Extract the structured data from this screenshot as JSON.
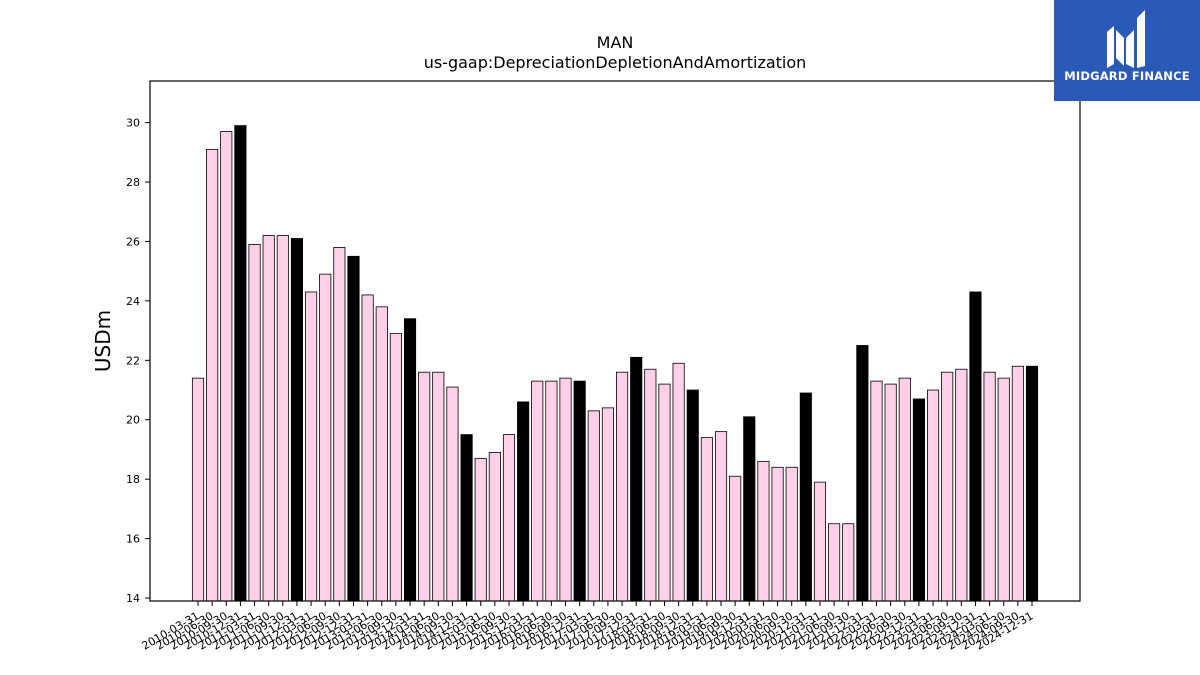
{
  "chart_data": {
    "type": "bar",
    "title": "MAN",
    "subtitle": "us-gaap:DepreciationDepletionAndAmortization",
    "xlabel": "",
    "ylabel": "USDm",
    "ylim": [
      13.9,
      31.4
    ],
    "yticks": [
      14,
      16,
      18,
      20,
      22,
      24,
      26,
      28,
      30
    ],
    "grid": false,
    "colors": {
      "quarter": "#ffd0e8",
      "year_end": "#000000",
      "edge": "#000000"
    },
    "categories": [
      "2010-03-31",
      "2010-06-30",
      "2010-09-30",
      "2010-12-31",
      "2011-03-31",
      "2011-06-30",
      "2011-09-30",
      "2011-12-31",
      "2012-03-31",
      "2012-06-30",
      "2012-09-30",
      "2012-12-31",
      "2013-03-31",
      "2013-06-30",
      "2013-09-30",
      "2013-12-31",
      "2014-03-31",
      "2014-06-30",
      "2014-09-30",
      "2014-12-31",
      "2015-03-31",
      "2015-06-30",
      "2015-09-30",
      "2015-12-31",
      "2016-03-31",
      "2016-06-30",
      "2016-09-30",
      "2016-12-31",
      "2017-03-31",
      "2017-06-30",
      "2017-09-30",
      "2017-12-31",
      "2018-03-31",
      "2018-06-30",
      "2018-09-30",
      "2018-12-31",
      "2019-03-31",
      "2019-06-30",
      "2019-09-30",
      "2019-12-31",
      "2020-03-31",
      "2020-06-30",
      "2020-09-30",
      "2020-12-31",
      "2021-03-31",
      "2021-06-30",
      "2021-09-30",
      "2021-12-31",
      "2022-03-31",
      "2022-06-30",
      "2022-09-30",
      "2022-12-31",
      "2023-03-31",
      "2023-06-30",
      "2023-09-30",
      "2023-12-31",
      "2024-03-31",
      "2024-06-30",
      "2024-09-30",
      "2024-12-31"
    ],
    "values": [
      21.4,
      29.1,
      29.7,
      29.9,
      25.9,
      26.2,
      26.2,
      26.1,
      24.3,
      24.9,
      25.8,
      25.5,
      24.2,
      23.8,
      22.9,
      23.4,
      21.6,
      21.6,
      21.1,
      19.5,
      18.7,
      18.9,
      19.5,
      20.6,
      21.3,
      21.3,
      21.4,
      21.3,
      20.3,
      20.4,
      21.6,
      22.1,
      21.7,
      21.2,
      21.9,
      21.0,
      19.4,
      19.6,
      18.1,
      20.1,
      18.6,
      18.4,
      18.4,
      20.9,
      17.9,
      16.5,
      16.5,
      22.5,
      21.3,
      21.2,
      21.4,
      20.7,
      21.0,
      21.6,
      21.7,
      24.3,
      21.6,
      21.4,
      21.8,
      21.8
    ]
  },
  "logo": {
    "text": "MIDGARD FINANCE",
    "color": "#2b59b8"
  }
}
